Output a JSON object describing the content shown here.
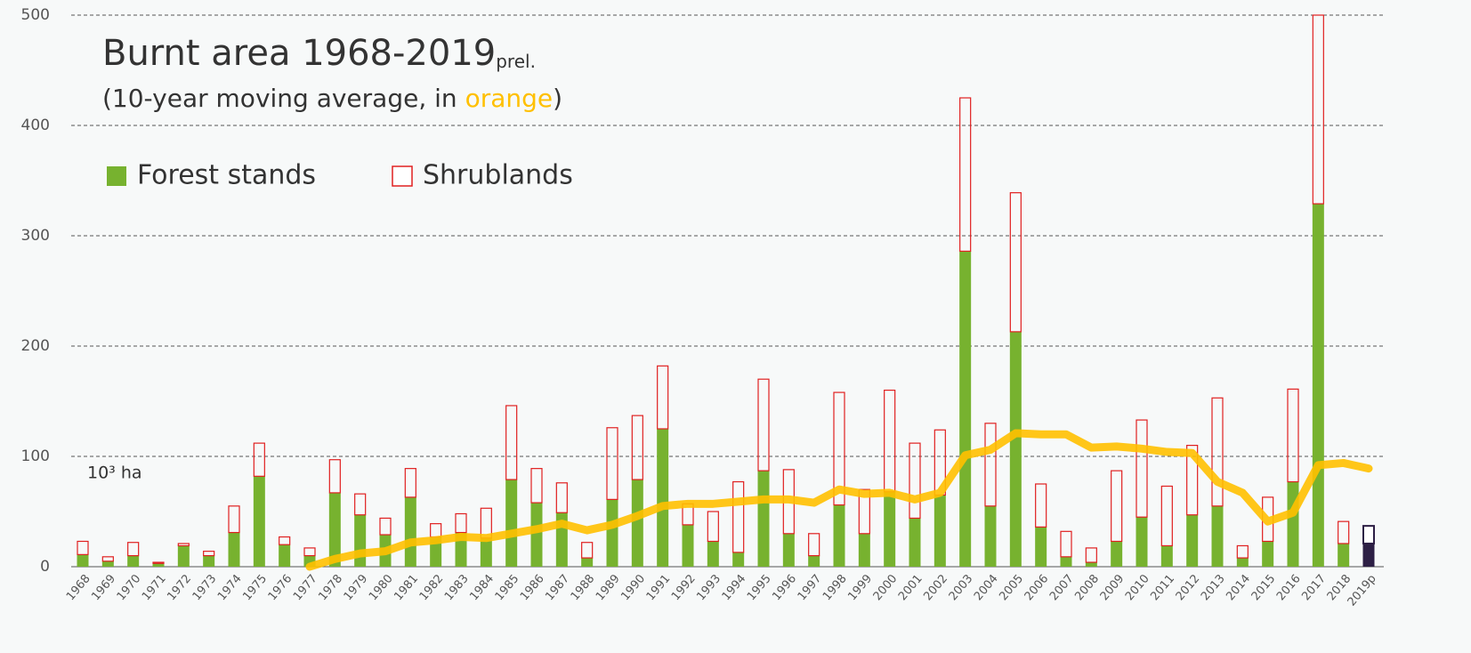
{
  "chart_data": {
    "type": "stacked_bar_line",
    "title": "Burnt area 1968-2019",
    "title_suffix": "prel.",
    "subtitle_parts": [
      "(10-year moving average, in ",
      "orange",
      ")"
    ],
    "unit_label": "10³ ha",
    "categories": [
      "1968",
      "1969",
      "1970",
      "1971",
      "1972",
      "1973",
      "1974",
      "1975",
      "1976",
      "1977",
      "1978",
      "1979",
      "1980",
      "1981",
      "1982",
      "1983",
      "1984",
      "1985",
      "1986",
      "1987",
      "1988",
      "1989",
      "1990",
      "1991",
      "1992",
      "1993",
      "1994",
      "1995",
      "1996",
      "1997",
      "1998",
      "1999",
      "2000",
      "2001",
      "2002",
      "2003",
      "2004",
      "2005",
      "2006",
      "2007",
      "2008",
      "2009",
      "2010",
      "2011",
      "2012",
      "2013",
      "2014",
      "2015",
      "2016",
      "2017",
      "2018",
      "2019p"
    ],
    "series": [
      {
        "name": "Forest stands",
        "color": "#77b22f",
        "highlight_color": "#2d1f45",
        "highlight_index": 51,
        "values": [
          11,
          5,
          10,
          3,
          19,
          10,
          31,
          82,
          20,
          10,
          67,
          47,
          29,
          63,
          27,
          31,
          26,
          79,
          58,
          49,
          8,
          61,
          79,
          125,
          38,
          23,
          13,
          87,
          30,
          10,
          56,
          30,
          68,
          44,
          65,
          286,
          55,
          213,
          36,
          9,
          4,
          23,
          45,
          19,
          47,
          55,
          8,
          23,
          77,
          329,
          21,
          21
        ]
      },
      {
        "name": "Shrublands",
        "color": "#e02020",
        "highlight_color": "#2d1f45",
        "highlight_index": 51,
        "values": [
          12,
          4,
          12,
          1,
          2,
          4,
          24,
          30,
          7,
          7,
          30,
          19,
          15,
          26,
          12,
          17,
          27,
          67,
          31,
          27,
          14,
          65,
          58,
          57,
          19,
          27,
          64,
          83,
          58,
          20,
          102,
          40,
          92,
          68,
          59,
          139,
          75,
          126,
          39,
          23,
          13,
          64,
          88,
          54,
          63,
          98,
          11,
          40,
          84,
          171,
          20,
          16
        ]
      },
      {
        "name": "10-year moving average",
        "color": "#ffc000",
        "type": "line",
        "values": [
          null,
          null,
          null,
          null,
          null,
          null,
          null,
          null,
          null,
          0,
          7,
          12,
          14,
          22,
          24,
          27,
          26,
          30,
          34,
          39,
          33,
          38,
          46,
          55,
          57,
          57,
          59,
          61,
          61,
          58,
          70,
          66,
          67,
          61,
          67,
          101,
          106,
          121,
          120,
          120,
          108,
          109,
          107,
          104,
          103,
          77,
          67,
          41,
          49,
          92,
          94,
          89
        ]
      }
    ],
    "ylim": [
      0,
      500
    ],
    "yticks": [
      0,
      100,
      200,
      300,
      400,
      500
    ],
    "grid": true
  }
}
